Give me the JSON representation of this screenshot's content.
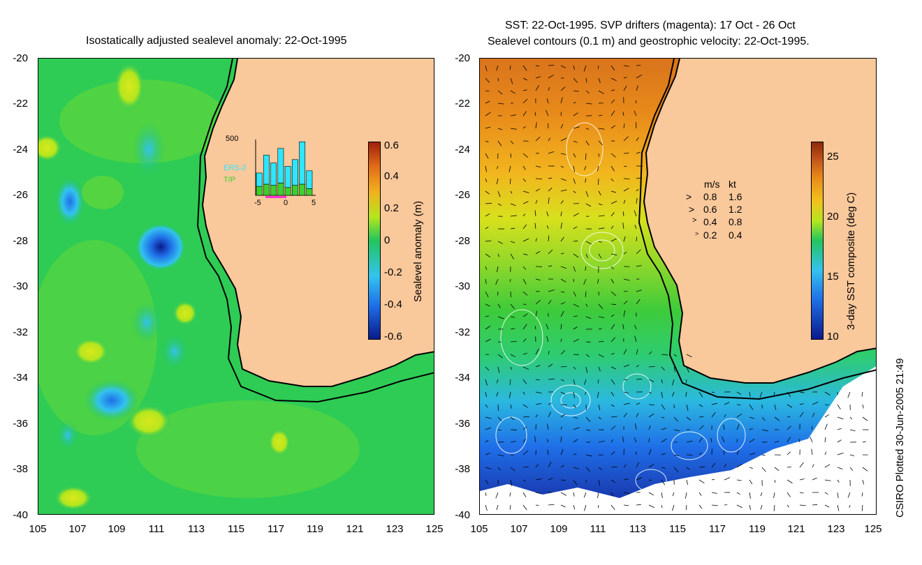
{
  "left_panel": {
    "title": "Isostatically adjusted sealevel anomaly: 22-Oct-1995",
    "colorbar": {
      "label": "Sealevel anomaly (m)",
      "ticks": [
        "0.6",
        "0.4",
        "0.2",
        "0",
        "-0.2",
        "-0.4",
        "-0.6"
      ],
      "colors": [
        "#0a1a8c",
        "#1f6fe8",
        "#33c3ef",
        "#2ecc71",
        "#22c55e",
        "#b5e61d",
        "#f2b01e",
        "#e06a1a",
        "#a0200a"
      ]
    },
    "inset": {
      "ymax_label": "500",
      "series_top": "ERS-2",
      "series_bottom": "T/P",
      "x_ticks": [
        "-5",
        "0",
        "5"
      ],
      "ers2_values": [
        120,
        260,
        200,
        310,
        190,
        230,
        380,
        160
      ],
      "tp_values": [
        80,
        100,
        90,
        110,
        70,
        90,
        100,
        60
      ],
      "ers2_color": "#2ee6ff",
      "tp_color": "#3bd12f"
    }
  },
  "right_panel": {
    "title_line1": "SST: 22-Oct-1995. SVP drifters (magenta): 17 Oct - 26 Oct",
    "title_line2": "Sealevel contours (0.1 m) and geostrophic velocity: 22-Oct-1995.",
    "colorbar": {
      "label": "3-day SST composite (deg C)",
      "ticks": [
        "25",
        "20",
        "15",
        "10"
      ],
      "colors": [
        "#0a1a8c",
        "#1f6fe8",
        "#33c3ef",
        "#22c55e",
        "#b5e61d",
        "#f2c21e",
        "#e88a1a",
        "#c0501a",
        "#8a2a0a"
      ]
    },
    "velocity_legend": {
      "header_ms": "m/s",
      "header_kt": "kt",
      "rows": [
        {
          "ms": "0.8",
          "kt": "1.6"
        },
        {
          "ms": "0.6",
          "kt": "1.2"
        },
        {
          "ms": "0.4",
          "kt": "0.8"
        },
        {
          "ms": "0.2",
          "kt": "0.4"
        }
      ]
    }
  },
  "axes": {
    "y_ticks": [
      "-20",
      "-22",
      "-24",
      "-26",
      "-28",
      "-30",
      "-32",
      "-34",
      "-36",
      "-38",
      "-40"
    ],
    "x_ticks": [
      "105",
      "107",
      "109",
      "111",
      "113",
      "115",
      "117",
      "119",
      "121",
      "123",
      "125"
    ]
  },
  "credit": "CSIRO Plotted 30-Jun-2005 21:49",
  "land_color": "#f9c89b"
}
